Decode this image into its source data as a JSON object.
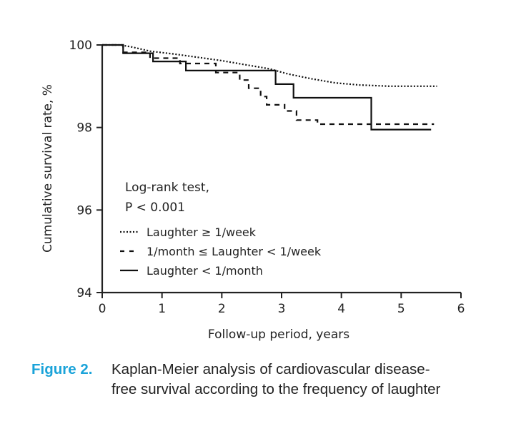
{
  "chart_data": {
    "type": "line",
    "xlabel": "Follow-up period, years",
    "ylabel": "Cumulative survival rate, %",
    "xlim": [
      0,
      6
    ],
    "ylim": [
      94,
      100
    ],
    "x_ticks": [
      "0",
      "1",
      "2",
      "3",
      "4",
      "5",
      "6"
    ],
    "y_ticks": [
      "94",
      "96",
      "98",
      "100"
    ],
    "grid": false,
    "annotation_lines": [
      "Log-rank test,",
      "P < 0.001"
    ],
    "legend_placement": "bottom-left",
    "series": [
      {
        "name": "Laughter ≥ 1/week",
        "style": "dotted",
        "points": [
          [
            0,
            100
          ],
          [
            0.3,
            100
          ],
          [
            0.5,
            99.95
          ],
          [
            0.8,
            99.85
          ],
          [
            1.2,
            99.78
          ],
          [
            1.6,
            99.7
          ],
          [
            2.0,
            99.62
          ],
          [
            2.4,
            99.52
          ],
          [
            2.8,
            99.42
          ],
          [
            3.1,
            99.3
          ],
          [
            3.5,
            99.18
          ],
          [
            3.9,
            99.08
          ],
          [
            4.3,
            99.03
          ],
          [
            4.8,
            99.0
          ],
          [
            5.6,
            99.0
          ]
        ]
      },
      {
        "name": "1/month ≤ Laughter < 1/week",
        "style": "dashed",
        "points": [
          [
            0,
            100
          ],
          [
            0.35,
            100
          ],
          [
            0.35,
            99.82
          ],
          [
            0.8,
            99.82
          ],
          [
            0.8,
            99.68
          ],
          [
            1.3,
            99.68
          ],
          [
            1.3,
            99.55
          ],
          [
            1.9,
            99.55
          ],
          [
            1.9,
            99.33
          ],
          [
            2.3,
            99.33
          ],
          [
            2.3,
            99.15
          ],
          [
            2.45,
            99.15
          ],
          [
            2.45,
            98.95
          ],
          [
            2.65,
            98.95
          ],
          [
            2.65,
            98.75
          ],
          [
            2.75,
            98.75
          ],
          [
            2.75,
            98.55
          ],
          [
            3.05,
            98.55
          ],
          [
            3.05,
            98.4
          ],
          [
            3.25,
            98.4
          ],
          [
            3.25,
            98.18
          ],
          [
            3.6,
            98.18
          ],
          [
            3.6,
            98.08
          ],
          [
            5.55,
            98.08
          ]
        ]
      },
      {
        "name": "Laughter < 1/month",
        "style": "solid",
        "points": [
          [
            0,
            100
          ],
          [
            0.35,
            100
          ],
          [
            0.35,
            99.8
          ],
          [
            0.85,
            99.8
          ],
          [
            0.85,
            99.6
          ],
          [
            1.4,
            99.6
          ],
          [
            1.4,
            99.38
          ],
          [
            2.9,
            99.38
          ],
          [
            2.9,
            99.05
          ],
          [
            3.2,
            99.05
          ],
          [
            3.2,
            98.72
          ],
          [
            4.5,
            98.72
          ],
          [
            4.5,
            97.95
          ],
          [
            5.5,
            97.95
          ]
        ]
      }
    ]
  },
  "caption": {
    "label": "Figure 2.",
    "line1": "Kaplan-Meier analysis of cardiovascular disease-",
    "line2": "free survival according to the frequency of laughter"
  }
}
